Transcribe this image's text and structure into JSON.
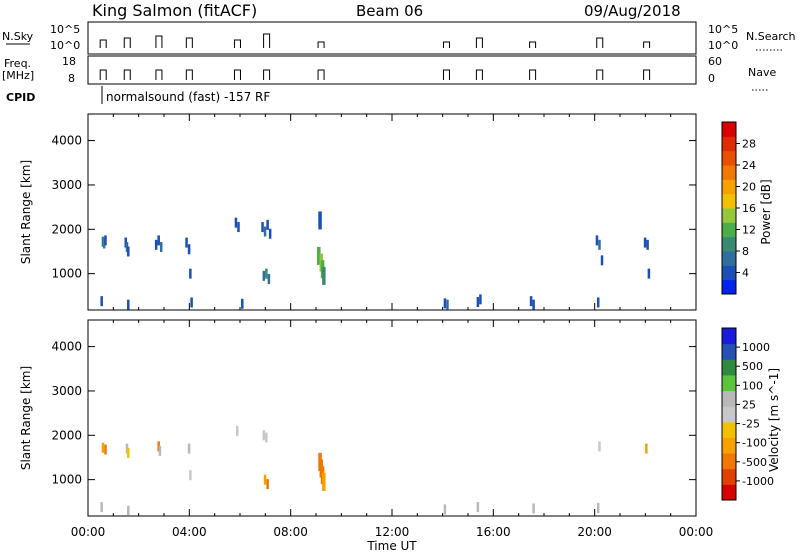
{
  "header": {
    "station": "King Salmon (fitACF)",
    "beam": "Beam 06",
    "date": "09/Aug/2018"
  },
  "sky_panel": {
    "label": "N.Sky",
    "left_ticks": [
      "10^5",
      "10^0"
    ],
    "right_label": "N.Search",
    "right_ticks": [
      "10^5",
      "10^0"
    ]
  },
  "freq_panel": {
    "label_line1": "Freq.",
    "label_line2": "[MHz]",
    "left_ticks": [
      "18",
      "8"
    ],
    "right_label": "Nave",
    "right_ticks": [
      "60",
      "0"
    ]
  },
  "cpid": {
    "label": "CPID",
    "text": "normalsound (fast) -157 RF"
  },
  "x_axis": {
    "label": "Time UT",
    "ticks": [
      "00:00",
      "04:00",
      "08:00",
      "12:00",
      "16:00",
      "20:00",
      "00:00"
    ]
  },
  "chart_data": [
    {
      "type": "heatmap",
      "panel": "power",
      "ylabel": "Slant Range [km]",
      "ylim": [
        180,
        4600
      ],
      "yticks": [
        "1000",
        "2000",
        "3000",
        "4000"
      ],
      "colorbar": {
        "label": "Power [dB]",
        "ticks": [
          "4",
          "8",
          "12",
          "16",
          "20",
          "24",
          "28"
        ],
        "colors": [
          "#0022ee",
          "#1a4fb8",
          "#2f6fa0",
          "#3a8a72",
          "#4cae46",
          "#92c83a",
          "#f2c200",
          "#f7a100",
          "#f07800",
          "#e85000",
          "#e02a00",
          "#d80000"
        ]
      },
      "cells": [
        {
          "t": 0.6,
          "r": 1720,
          "p": 6
        },
        {
          "t": 0.65,
          "r": 1680,
          "p": 10
        },
        {
          "t": 0.7,
          "r": 1750,
          "p": 4
        },
        {
          "t": 1.5,
          "r": 1700,
          "p": 5
        },
        {
          "t": 1.55,
          "r": 1600,
          "p": 8
        },
        {
          "t": 1.6,
          "r": 1500,
          "p": 4
        },
        {
          "t": 2.7,
          "r": 1650,
          "p": 5
        },
        {
          "t": 2.8,
          "r": 1750,
          "p": 3
        },
        {
          "t": 2.9,
          "r": 1600,
          "p": 6
        },
        {
          "t": 3.9,
          "r": 1700,
          "p": 4
        },
        {
          "t": 4.0,
          "r": 1550,
          "p": 3
        },
        {
          "t": 4.05,
          "r": 1000,
          "p": 3
        },
        {
          "t": 5.85,
          "r": 2150,
          "p": 3
        },
        {
          "t": 5.95,
          "r": 2050,
          "p": 4
        },
        {
          "t": 6.9,
          "r": 2050,
          "p": 4
        },
        {
          "t": 7.0,
          "r": 1950,
          "p": 6
        },
        {
          "t": 7.1,
          "r": 2100,
          "p": 5
        },
        {
          "t": 7.2,
          "r": 1900,
          "p": 4
        },
        {
          "t": 6.95,
          "r": 950,
          "p": 8
        },
        {
          "t": 7.05,
          "r": 1000,
          "p": 10
        },
        {
          "t": 7.15,
          "r": 880,
          "p": 7
        },
        {
          "t": 9.1,
          "r": 1400,
          "p": 12
        },
        {
          "t": 9.2,
          "r": 1250,
          "p": 16
        },
        {
          "t": 9.25,
          "r": 1100,
          "p": 14
        },
        {
          "t": 9.3,
          "r": 950,
          "p": 10
        },
        {
          "t": 9.15,
          "r": 2200,
          "p": 3
        },
        {
          "t": 14.1,
          "r": 330,
          "p": 4
        },
        {
          "t": 14.2,
          "r": 300,
          "p": 6
        },
        {
          "t": 15.4,
          "r": 360,
          "p": 5
        },
        {
          "t": 15.5,
          "r": 420,
          "p": 4
        },
        {
          "t": 17.5,
          "r": 380,
          "p": 5
        },
        {
          "t": 17.6,
          "r": 300,
          "p": 4
        },
        {
          "t": 20.1,
          "r": 1750,
          "p": 4
        },
        {
          "t": 20.2,
          "r": 1650,
          "p": 6
        },
        {
          "t": 20.3,
          "r": 1300,
          "p": 3
        },
        {
          "t": 20.15,
          "r": 350,
          "p": 4
        },
        {
          "t": 22.0,
          "r": 1700,
          "p": 5
        },
        {
          "t": 22.1,
          "r": 1650,
          "p": 4
        },
        {
          "t": 22.15,
          "r": 1000,
          "p": 3
        },
        {
          "t": 0.55,
          "r": 380,
          "p": 4
        },
        {
          "t": 1.6,
          "r": 300,
          "p": 3
        },
        {
          "t": 4.1,
          "r": 350,
          "p": 3
        },
        {
          "t": 6.1,
          "r": 320,
          "p": 3
        }
      ]
    },
    {
      "type": "heatmap",
      "panel": "velocity",
      "ylabel": "Slant Range [km]",
      "ylim": [
        180,
        4600
      ],
      "yticks": [
        "1000",
        "2000",
        "3000",
        "4000"
      ],
      "colorbar": {
        "label": "Velocity [m s^-1]",
        "ticks": [
          "1000",
          "500",
          "100",
          "25",
          "-25",
          "-100",
          "-500",
          "-1000"
        ],
        "colors": [
          "#1a1adc",
          "#2650b4",
          "#2f8a40",
          "#5ac43a",
          "#b8b8b8",
          "#c8c8c8",
          "#f2c200",
          "#f7a100",
          "#f07800",
          "#e04000",
          "#d80000"
        ]
      },
      "cells": [
        {
          "t": 0.6,
          "r": 1720,
          "v": -150
        },
        {
          "t": 0.7,
          "r": 1680,
          "v": -300
        },
        {
          "t": 1.55,
          "r": 1700,
          "v": 50
        },
        {
          "t": 1.6,
          "r": 1600,
          "v": -50
        },
        {
          "t": 2.8,
          "r": 1750,
          "v": -400
        },
        {
          "t": 2.85,
          "r": 1650,
          "v": 60
        },
        {
          "t": 4.0,
          "r": 1700,
          "v": 30
        },
        {
          "t": 4.05,
          "r": 1100,
          "v": 0
        },
        {
          "t": 5.9,
          "r": 2100,
          "v": -20
        },
        {
          "t": 6.95,
          "r": 2000,
          "v": 10
        },
        {
          "t": 7.05,
          "r": 1950,
          "v": -15
        },
        {
          "t": 7.0,
          "r": 1000,
          "v": -200
        },
        {
          "t": 7.1,
          "r": 900,
          "v": -400
        },
        {
          "t": 9.15,
          "r": 1400,
          "v": -300
        },
        {
          "t": 9.2,
          "r": 1250,
          "v": -450
        },
        {
          "t": 9.25,
          "r": 1100,
          "v": -350
        },
        {
          "t": 9.3,
          "r": 950,
          "v": -200
        },
        {
          "t": 14.1,
          "r": 330,
          "v": 60
        },
        {
          "t": 15.4,
          "r": 380,
          "v": 80
        },
        {
          "t": 17.6,
          "r": 350,
          "v": 70
        },
        {
          "t": 20.2,
          "r": 1750,
          "v": 0
        },
        {
          "t": 20.15,
          "r": 360,
          "v": 50
        },
        {
          "t": 22.05,
          "r": 1700,
          "v": -120
        },
        {
          "t": 0.55,
          "r": 380,
          "v": 40
        },
        {
          "t": 1.6,
          "r": 300,
          "v": 30
        }
      ]
    }
  ]
}
